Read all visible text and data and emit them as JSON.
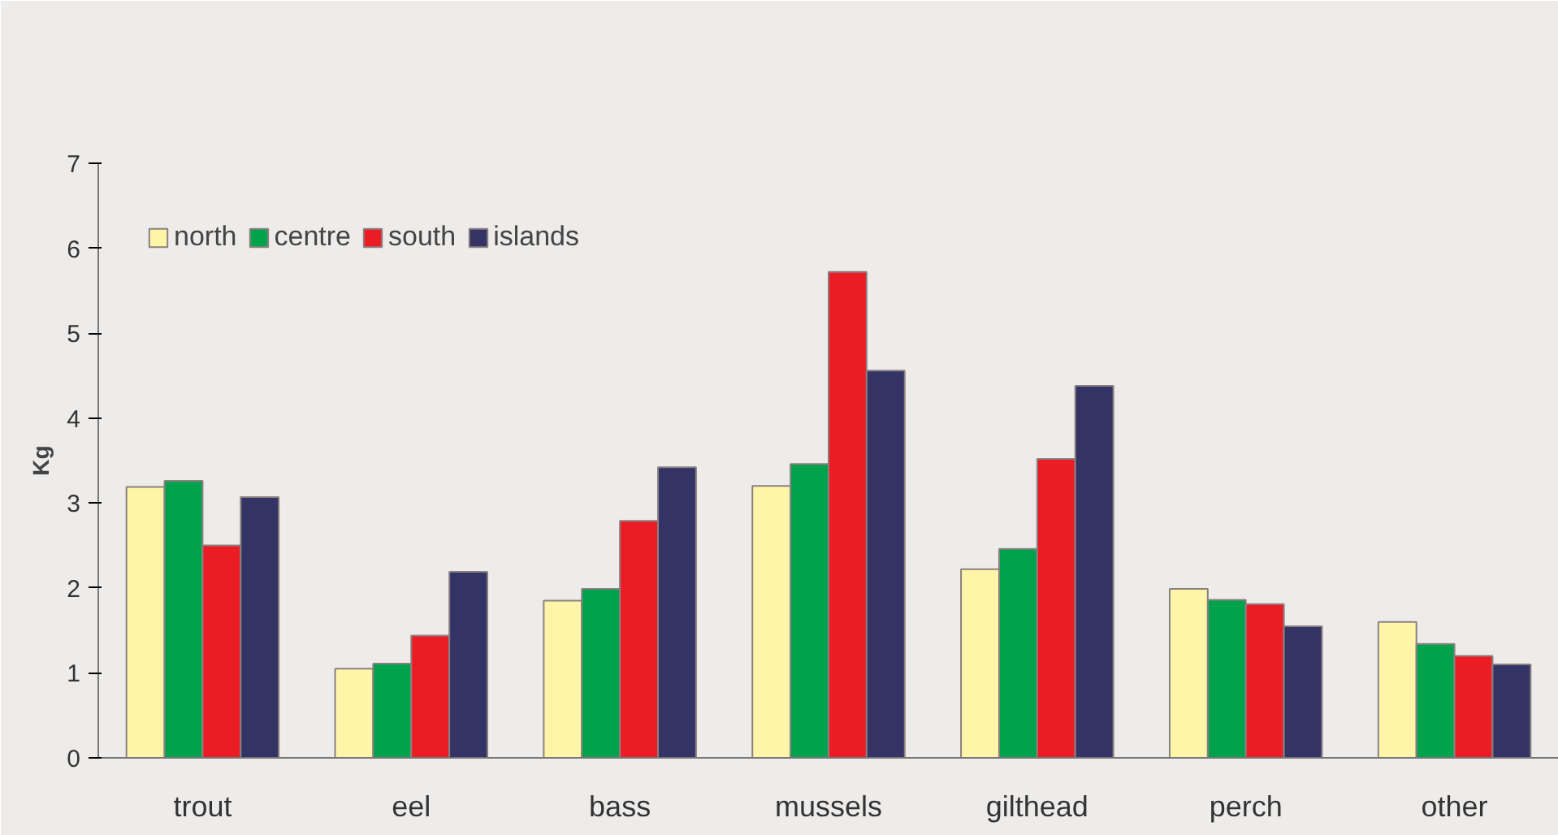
{
  "chart_data": {
    "type": "bar",
    "ylabel": "Kg",
    "categories": [
      "trout",
      "eel",
      "bass",
      "mussels",
      "gilthead",
      "perch",
      "other"
    ],
    "series": [
      {
        "name": "north",
        "color": "#fff5a8",
        "values": [
          3.19,
          1.05,
          1.85,
          3.2,
          2.22,
          1.99,
          1.6
        ]
      },
      {
        "name": "centre",
        "color": "#00a24b",
        "values": [
          3.26,
          1.11,
          1.99,
          3.46,
          2.46,
          1.86,
          1.34
        ]
      },
      {
        "name": "south",
        "color": "#ec1c24",
        "values": [
          2.5,
          1.44,
          2.79,
          5.72,
          3.52,
          1.81,
          1.2
        ]
      },
      {
        "name": "islands",
        "color": "#333366",
        "values": [
          3.07,
          2.19,
          3.42,
          4.56,
          4.38,
          1.55,
          1.1
        ]
      }
    ],
    "ylim": [
      0,
      7
    ],
    "yticks": [
      0,
      1,
      2,
      3,
      4,
      5,
      6,
      7
    ],
    "grid": false,
    "legend": "top left"
  }
}
